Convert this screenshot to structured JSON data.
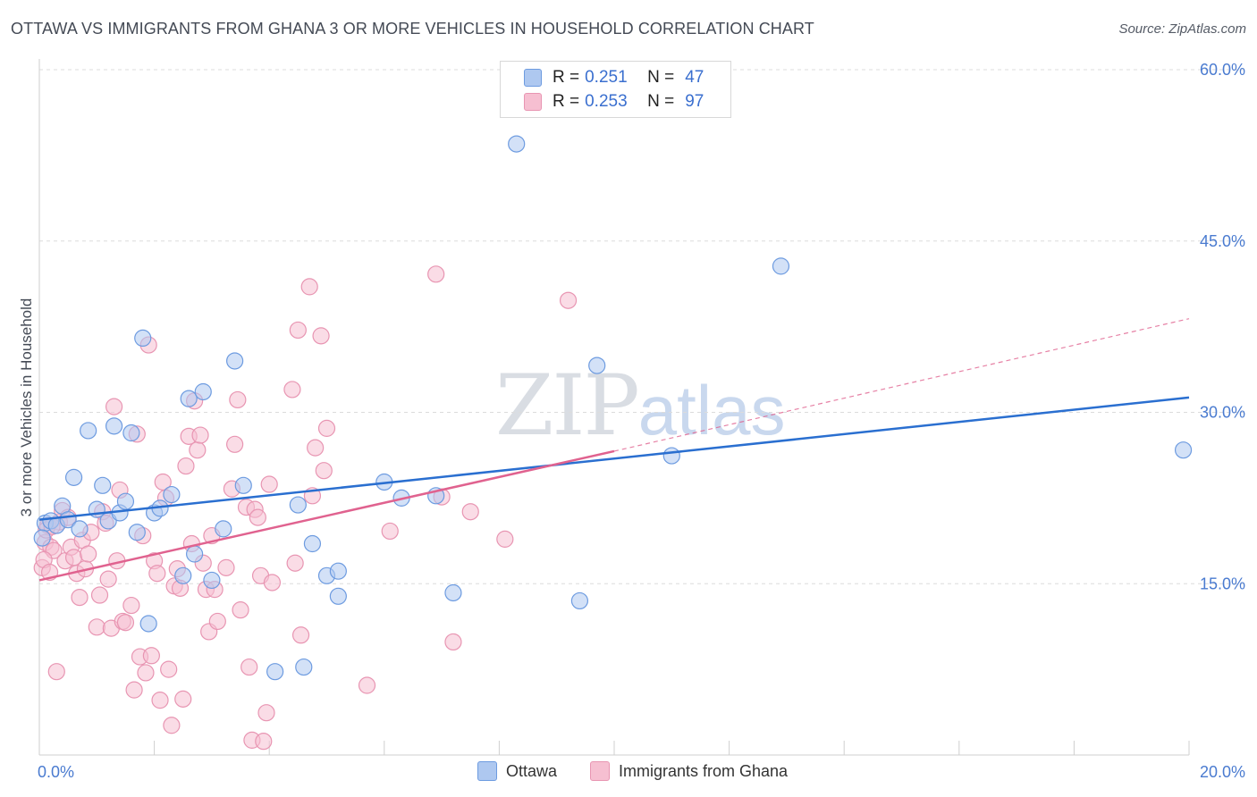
{
  "title": "OTTAWA VS IMMIGRANTS FROM GHANA 3 OR MORE VEHICLES IN HOUSEHOLD CORRELATION CHART",
  "source": "Source: ZipAtlas.com",
  "watermark": {
    "zip": "ZIP",
    "atlas": "atlas"
  },
  "legend": {
    "rows": [
      {
        "r_label": "R =",
        "r_value": "0.251",
        "n_label": "N =",
        "n_value": "47"
      },
      {
        "r_label": "R =",
        "r_value": "0.253",
        "n_label": "N =",
        "n_value": "97"
      }
    ]
  },
  "bottom_legend": [
    "Ottawa",
    "Immigrants from Ghana"
  ],
  "colors": {
    "ottawa_fill": "#aec8f0",
    "ottawa_stroke": "#6d9be0",
    "ottawa_line": "#2a6fd0",
    "ghana_fill": "#f6bfd1",
    "ghana_stroke": "#e895b2",
    "ghana_line": "#e0628f",
    "grid": "#dcdcdc",
    "axis_text": "#4a7bd0"
  },
  "chart_data": {
    "type": "scatter",
    "title": "OTTAWA VS IMMIGRANTS FROM GHANA 3 OR MORE VEHICLES IN HOUSEHOLD CORRELATION CHART",
    "xlabel": "",
    "ylabel": "3 or more Vehicles in Household",
    "xlim": [
      0,
      20
    ],
    "ylim": [
      0,
      60
    ],
    "x_tick_labels": [
      "0.0%",
      "20.0%"
    ],
    "y_ticks": [
      15,
      30,
      45,
      60
    ],
    "y_tick_labels": [
      "15.0%",
      "30.0%",
      "45.0%",
      "60.0%"
    ],
    "grid": true,
    "series": [
      {
        "name": "Ottawa",
        "R": 0.251,
        "N": 47,
        "trend": {
          "x0": 0,
          "y0": 20.6,
          "x1": 20,
          "y1": 31.3
        },
        "points": [
          [
            0.1,
            20.3
          ],
          [
            0.2,
            20.5
          ],
          [
            0.3,
            20.1
          ],
          [
            0.4,
            21.8
          ],
          [
            0.5,
            20.6
          ],
          [
            0.6,
            24.3
          ],
          [
            0.7,
            19.8
          ],
          [
            0.85,
            28.4
          ],
          [
            1.0,
            21.5
          ],
          [
            1.1,
            23.6
          ],
          [
            1.2,
            20.5
          ],
          [
            1.3,
            28.8
          ],
          [
            1.4,
            21.2
          ],
          [
            1.5,
            22.2
          ],
          [
            1.6,
            28.2
          ],
          [
            1.7,
            19.5
          ],
          [
            1.8,
            36.5
          ],
          [
            1.9,
            11.5
          ],
          [
            2.0,
            21.2
          ],
          [
            2.1,
            21.6
          ],
          [
            2.3,
            22.8
          ],
          [
            2.5,
            15.7
          ],
          [
            2.6,
            31.2
          ],
          [
            2.7,
            17.6
          ],
          [
            2.85,
            31.8
          ],
          [
            3.0,
            15.3
          ],
          [
            3.2,
            19.8
          ],
          [
            3.4,
            34.5
          ],
          [
            3.55,
            23.6
          ],
          [
            4.1,
            7.3
          ],
          [
            4.5,
            21.9
          ],
          [
            4.6,
            7.7
          ],
          [
            4.75,
            18.5
          ],
          [
            5.0,
            15.7
          ],
          [
            5.2,
            16.1
          ],
          [
            5.2,
            13.9
          ],
          [
            6.0,
            23.9
          ],
          [
            6.3,
            22.5
          ],
          [
            6.9,
            22.7
          ],
          [
            7.2,
            14.2
          ],
          [
            8.3,
            53.5
          ],
          [
            9.4,
            13.5
          ],
          [
            9.7,
            34.1
          ],
          [
            11.0,
            26.2
          ],
          [
            12.9,
            42.8
          ],
          [
            19.9,
            26.7
          ],
          [
            0.05,
            19.0
          ]
        ]
      },
      {
        "name": "Immigrants from Ghana",
        "R": 0.253,
        "N": 97,
        "trend": {
          "x0": 0,
          "y0": 15.3,
          "x1": 10.0,
          "y1": 26.6
        },
        "trend_dashed": {
          "x0": 10.0,
          "y0": 26.6,
          "x1": 20,
          "y1": 38.2
        },
        "points": [
          [
            0.05,
            16.4
          ],
          [
            0.1,
            18.6
          ],
          [
            0.15,
            20.1
          ],
          [
            0.2,
            18.2
          ],
          [
            0.25,
            17.9
          ],
          [
            0.3,
            7.3
          ],
          [
            0.35,
            20.4
          ],
          [
            0.4,
            21.4
          ],
          [
            0.45,
            17.0
          ],
          [
            0.5,
            20.8
          ],
          [
            0.55,
            18.2
          ],
          [
            0.6,
            17.3
          ],
          [
            0.65,
            15.9
          ],
          [
            0.7,
            13.8
          ],
          [
            0.75,
            18.8
          ],
          [
            0.8,
            16.3
          ],
          [
            0.85,
            17.6
          ],
          [
            0.9,
            19.5
          ],
          [
            1.0,
            11.2
          ],
          [
            1.05,
            14.0
          ],
          [
            1.1,
            21.3
          ],
          [
            1.15,
            20.3
          ],
          [
            1.2,
            15.4
          ],
          [
            1.25,
            11.1
          ],
          [
            1.3,
            30.5
          ],
          [
            1.35,
            17.0
          ],
          [
            1.4,
            23.2
          ],
          [
            1.45,
            11.7
          ],
          [
            1.5,
            11.6
          ],
          [
            1.6,
            13.1
          ],
          [
            1.65,
            5.7
          ],
          [
            1.7,
            28.1
          ],
          [
            1.75,
            8.6
          ],
          [
            1.8,
            19.2
          ],
          [
            1.85,
            7.2
          ],
          [
            1.9,
            35.9
          ],
          [
            1.95,
            8.7
          ],
          [
            2.0,
            17.0
          ],
          [
            2.05,
            15.9
          ],
          [
            2.1,
            4.8
          ],
          [
            2.15,
            23.9
          ],
          [
            2.2,
            22.5
          ],
          [
            2.25,
            7.5
          ],
          [
            2.3,
            2.6
          ],
          [
            2.35,
            14.8
          ],
          [
            2.4,
            16.3
          ],
          [
            2.45,
            14.6
          ],
          [
            2.5,
            4.9
          ],
          [
            2.55,
            25.3
          ],
          [
            2.6,
            27.9
          ],
          [
            2.65,
            18.5
          ],
          [
            2.7,
            31.0
          ],
          [
            2.75,
            26.7
          ],
          [
            2.8,
            28.0
          ],
          [
            2.85,
            16.8
          ],
          [
            2.9,
            14.5
          ],
          [
            2.95,
            10.8
          ],
          [
            3.0,
            19.2
          ],
          [
            3.05,
            14.5
          ],
          [
            3.1,
            11.7
          ],
          [
            3.25,
            16.4
          ],
          [
            3.35,
            23.3
          ],
          [
            3.4,
            27.2
          ],
          [
            3.45,
            31.1
          ],
          [
            3.5,
            12.7
          ],
          [
            3.6,
            21.7
          ],
          [
            3.65,
            7.7
          ],
          [
            3.7,
            1.3
          ],
          [
            3.75,
            21.5
          ],
          [
            3.8,
            20.8
          ],
          [
            3.85,
            15.7
          ],
          [
            3.9,
            1.2
          ],
          [
            3.95,
            3.7
          ],
          [
            4.0,
            23.7
          ],
          [
            4.05,
            15.1
          ],
          [
            4.4,
            32.0
          ],
          [
            4.45,
            16.8
          ],
          [
            4.5,
            37.2
          ],
          [
            4.55,
            10.5
          ],
          [
            4.7,
            41.0
          ],
          [
            4.75,
            22.7
          ],
          [
            4.8,
            26.9
          ],
          [
            4.9,
            36.7
          ],
          [
            4.95,
            24.9
          ],
          [
            5.0,
            28.6
          ],
          [
            5.7,
            6.1
          ],
          [
            6.1,
            19.6
          ],
          [
            6.9,
            42.1
          ],
          [
            7.0,
            22.6
          ],
          [
            7.2,
            9.9
          ],
          [
            7.5,
            21.3
          ],
          [
            8.1,
            18.9
          ],
          [
            9.2,
            39.8
          ],
          [
            0.08,
            17.1
          ],
          [
            0.12,
            19.7
          ],
          [
            0.18,
            16.0
          ],
          [
            0.22,
            20.0
          ]
        ]
      }
    ]
  }
}
